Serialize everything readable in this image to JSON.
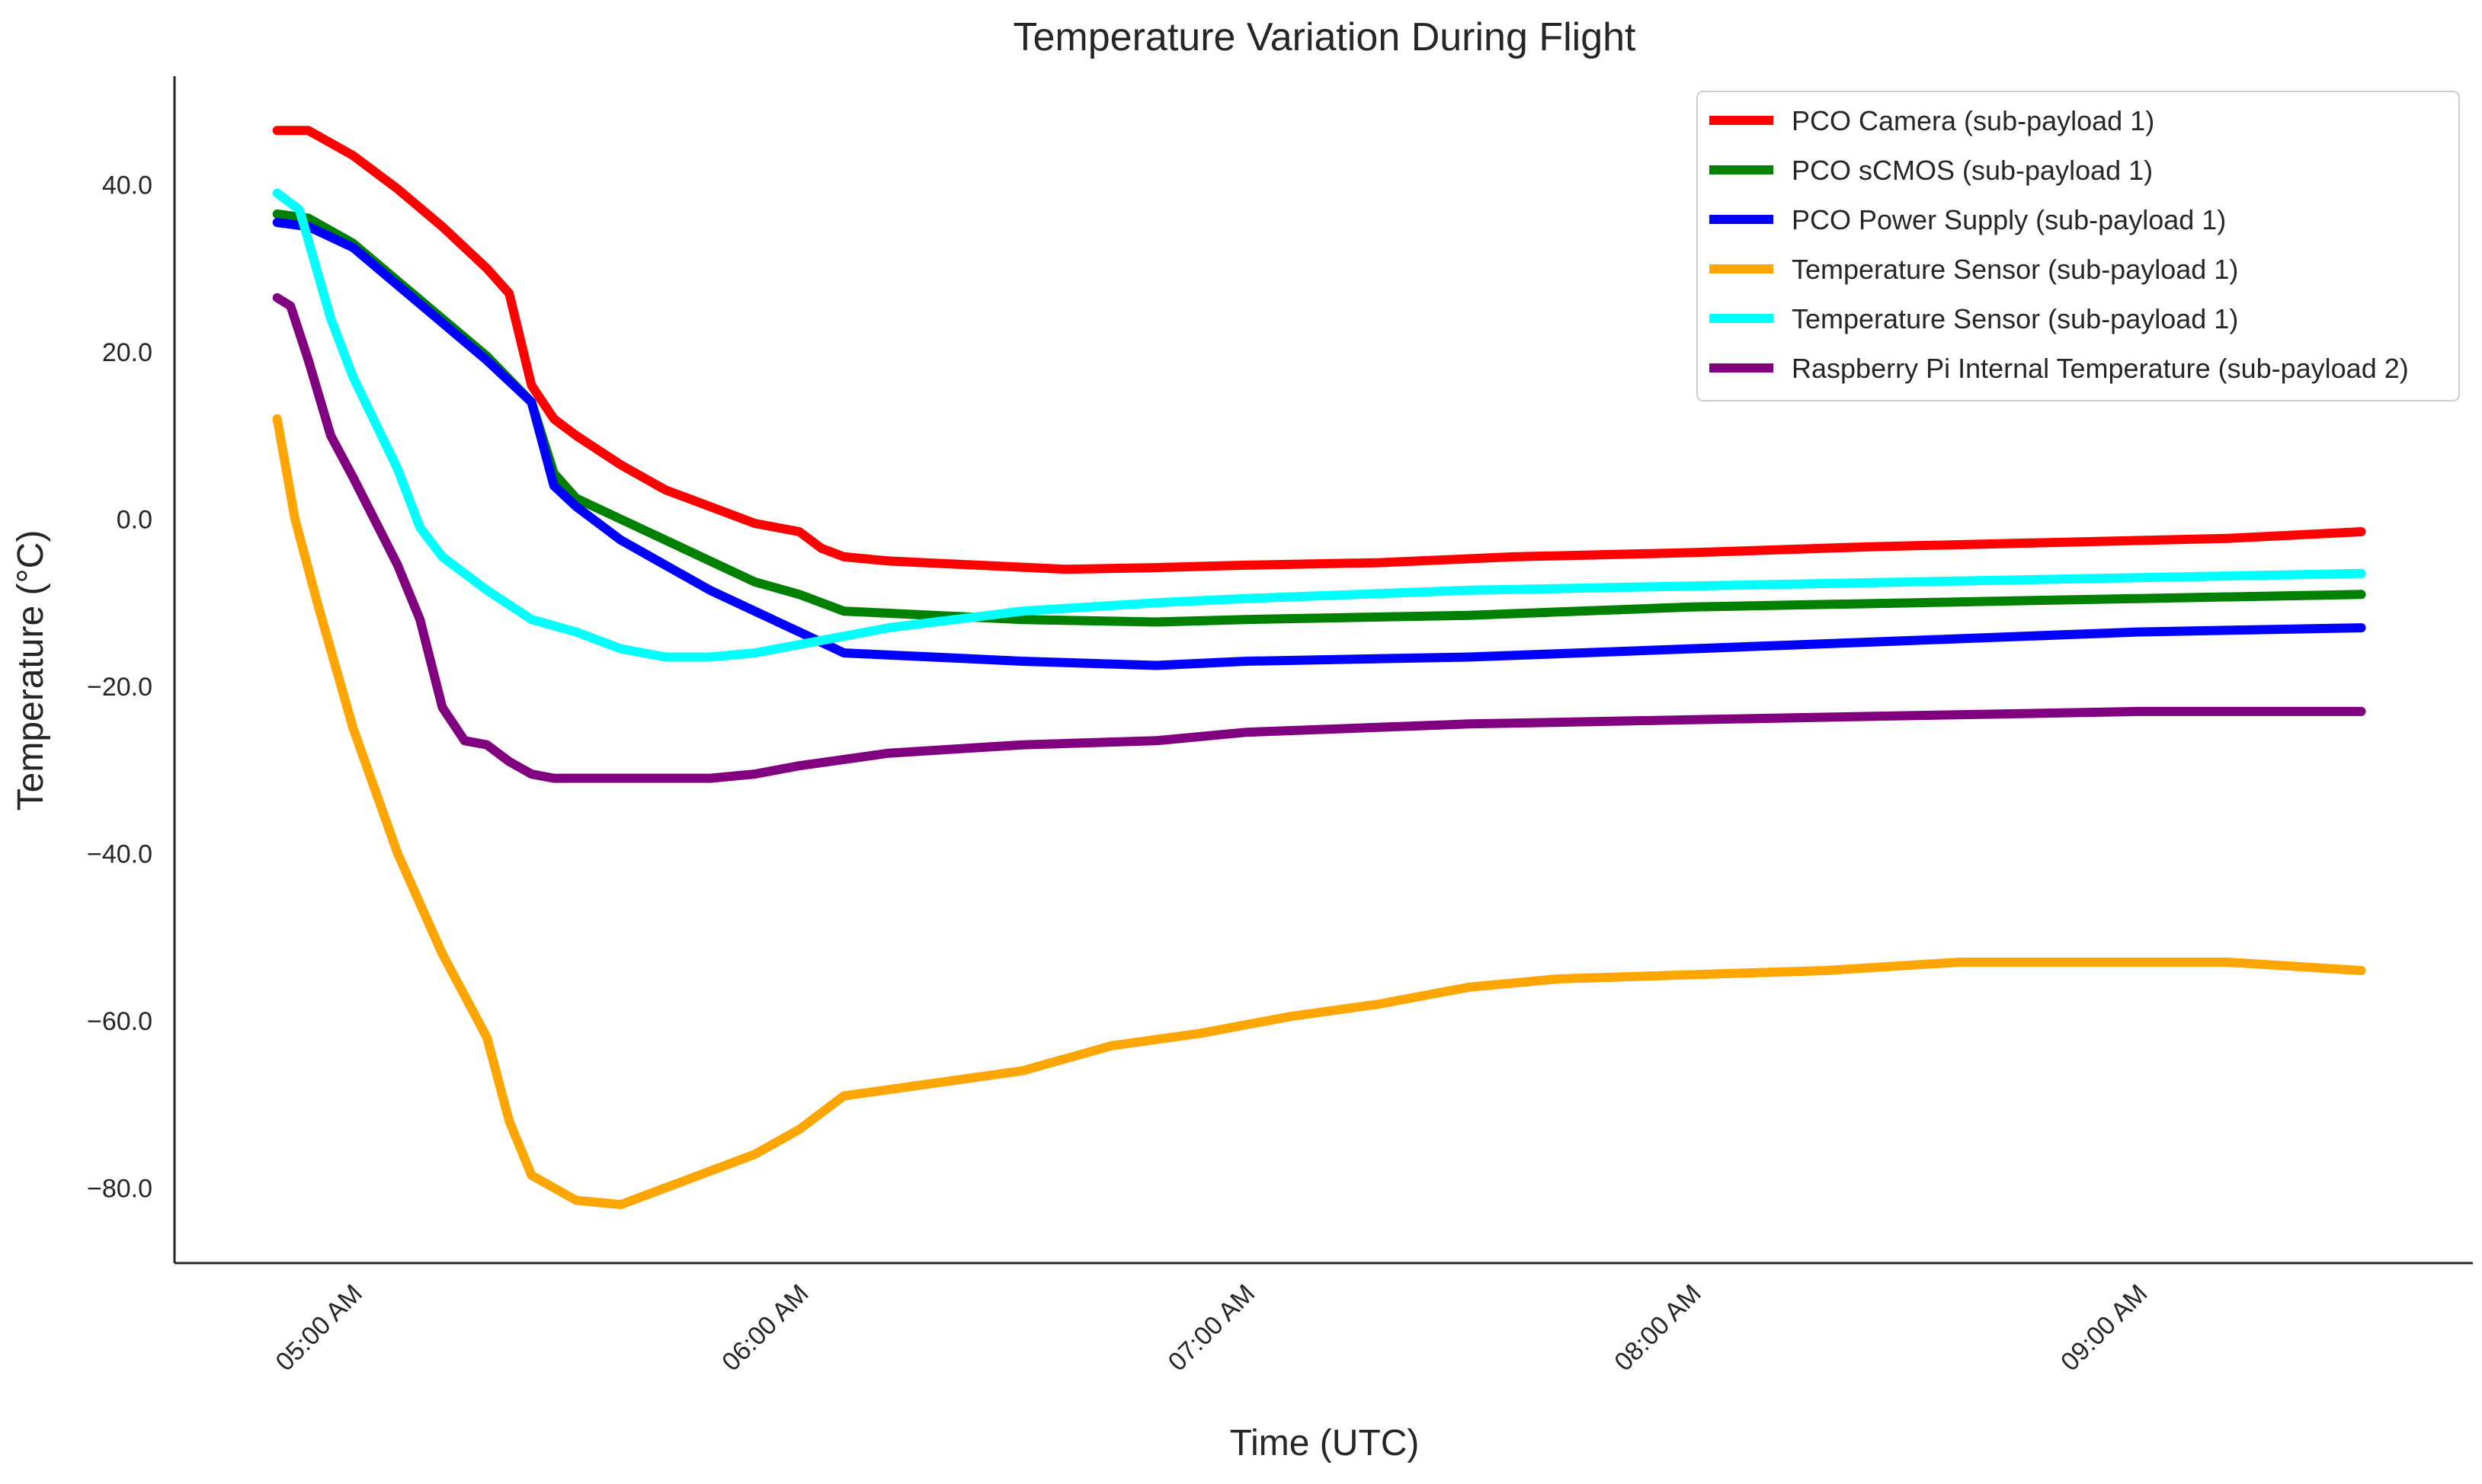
{
  "chart_data": {
    "type": "line",
    "title": "Temperature Variation During Flight",
    "xlabel": "Time (UTC)",
    "ylabel": "Temperature (°C)",
    "x_unit": "hours UTC",
    "xlim": [
      4.6,
      9.75
    ],
    "ylim": [
      -89,
      53
    ],
    "grid": false,
    "legend_position": "top-right",
    "x_ticks": [
      {
        "value": 5.0,
        "label": "05:00 AM"
      },
      {
        "value": 6.0,
        "label": "06:00 AM"
      },
      {
        "value": 7.0,
        "label": "07:00 AM"
      },
      {
        "value": 8.0,
        "label": "08:00 AM"
      },
      {
        "value": 9.0,
        "label": "09:00 AM"
      }
    ],
    "y_ticks": [
      {
        "value": 40,
        "label": "40.0"
      },
      {
        "value": 20,
        "label": "20.0"
      },
      {
        "value": 0,
        "label": "0.0"
      },
      {
        "value": -20,
        "label": "−20.0"
      },
      {
        "value": -40,
        "label": "−40.0"
      },
      {
        "value": -60,
        "label": "−60.0"
      },
      {
        "value": -80,
        "label": "−80.0"
      }
    ],
    "series": [
      {
        "name": "PCO Camera (sub-payload 1)",
        "color": "#ff0000",
        "x": [
          4.83,
          4.9,
          5.0,
          5.1,
          5.2,
          5.3,
          5.35,
          5.4,
          5.45,
          5.5,
          5.6,
          5.7,
          5.8,
          5.9,
          6.0,
          6.05,
          6.1,
          6.2,
          6.4,
          6.6,
          6.8,
          7.0,
          7.3,
          7.6,
          8.0,
          8.4,
          8.8,
          9.2,
          9.5
        ],
        "y": [
          46.5,
          46.5,
          43.5,
          39.5,
          35.0,
          30.0,
          27.0,
          16.0,
          12.0,
          10.0,
          6.5,
          3.5,
          1.5,
          -0.5,
          -1.5,
          -3.5,
          -4.5,
          -5.0,
          -5.5,
          -6.0,
          -5.8,
          -5.5,
          -5.2,
          -4.5,
          -4.0,
          -3.3,
          -2.8,
          -2.3,
          -1.5
        ]
      },
      {
        "name": "PCO sCMOS (sub-payload 1)",
        "color": "#008000",
        "x": [
          4.83,
          4.9,
          5.0,
          5.1,
          5.2,
          5.3,
          5.4,
          5.45,
          5.5,
          5.6,
          5.7,
          5.8,
          5.9,
          6.0,
          6.1,
          6.3,
          6.5,
          6.8,
          7.0,
          7.5,
          8.0,
          8.5,
          9.0,
          9.5
        ],
        "y": [
          36.5,
          36.0,
          33.0,
          28.5,
          24.0,
          19.5,
          14.0,
          5.5,
          2.5,
          0.0,
          -2.5,
          -5.0,
          -7.5,
          -9.0,
          -11.0,
          -11.5,
          -12.0,
          -12.3,
          -12.0,
          -11.5,
          -10.5,
          -10.0,
          -9.5,
          -9.0
        ]
      },
      {
        "name": "PCO Power Supply (sub-payload 1)",
        "color": "#0000ff",
        "x": [
          4.83,
          4.9,
          5.0,
          5.1,
          5.2,
          5.3,
          5.4,
          5.45,
          5.5,
          5.6,
          5.7,
          5.8,
          5.9,
          6.0,
          6.1,
          6.3,
          6.5,
          6.8,
          7.0,
          7.5,
          8.0,
          8.5,
          9.0,
          9.5
        ],
        "y": [
          35.5,
          35.0,
          32.5,
          28.0,
          23.5,
          19.0,
          14.0,
          4.0,
          1.5,
          -2.5,
          -5.5,
          -8.5,
          -11.0,
          -13.5,
          -16.0,
          -16.5,
          -17.0,
          -17.5,
          -17.0,
          -16.5,
          -15.5,
          -14.5,
          -13.5,
          -13.0
        ]
      },
      {
        "name": "Temperature Sensor (sub-payload 1)",
        "color": "#ffa500",
        "x": [
          4.83,
          4.87,
          4.92,
          5.0,
          5.1,
          5.2,
          5.3,
          5.35,
          5.4,
          5.5,
          5.6,
          5.7,
          5.8,
          5.9,
          6.0,
          6.1,
          6.3,
          6.5,
          6.7,
          6.9,
          7.1,
          7.3,
          7.5,
          7.7,
          8.0,
          8.3,
          8.6,
          8.9,
          9.2,
          9.5
        ],
        "y": [
          12.0,
          0.0,
          -10.0,
          -25.0,
          -40.0,
          -52.0,
          -62.0,
          -72.0,
          -78.5,
          -81.5,
          -82.0,
          -80.0,
          -78.0,
          -76.0,
          -73.0,
          -69.0,
          -67.5,
          -66.0,
          -63.0,
          -61.5,
          -59.5,
          -58.0,
          -56.0,
          -55.0,
          -54.5,
          -54.0,
          -53.0,
          -53.0,
          -53.0,
          -54.0
        ]
      },
      {
        "name": "Temperature Sensor (sub-payload 1)",
        "color": "#00ffff",
        "x": [
          4.83,
          4.88,
          4.95,
          5.0,
          5.1,
          5.15,
          5.2,
          5.3,
          5.4,
          5.5,
          5.6,
          5.7,
          5.8,
          5.9,
          6.0,
          6.2,
          6.5,
          6.8,
          7.0,
          7.5,
          8.0,
          8.5,
          9.0,
          9.5
        ],
        "y": [
          39.0,
          37.0,
          24.0,
          17.0,
          6.0,
          -1.0,
          -4.5,
          -8.5,
          -12.0,
          -13.5,
          -15.5,
          -16.5,
          -16.5,
          -16.0,
          -15.0,
          -13.0,
          -11.0,
          -10.0,
          -9.5,
          -8.5,
          -8.0,
          -7.5,
          -7.0,
          -6.5
        ]
      },
      {
        "name": "Raspberry Pi Internal Temperature (sub-payload 2)",
        "color": "#800080",
        "x": [
          4.83,
          4.86,
          4.9,
          4.95,
          5.0,
          5.1,
          5.15,
          5.2,
          5.25,
          5.3,
          5.35,
          5.4,
          5.45,
          5.5,
          5.6,
          5.7,
          5.8,
          5.9,
          6.0,
          6.2,
          6.5,
          6.8,
          7.0,
          7.5,
          8.0,
          8.5,
          9.0,
          9.5
        ],
        "y": [
          26.5,
          25.5,
          19.0,
          10.0,
          5.0,
          -5.5,
          -12.0,
          -22.5,
          -26.5,
          -27.0,
          -29.0,
          -30.5,
          -31.0,
          -31.0,
          -31.0,
          -31.0,
          -31.0,
          -30.5,
          -29.5,
          -28.0,
          -27.0,
          -26.5,
          -25.5,
          -24.5,
          -24.0,
          -23.5,
          -23.0,
          -23.0
        ]
      }
    ]
  }
}
